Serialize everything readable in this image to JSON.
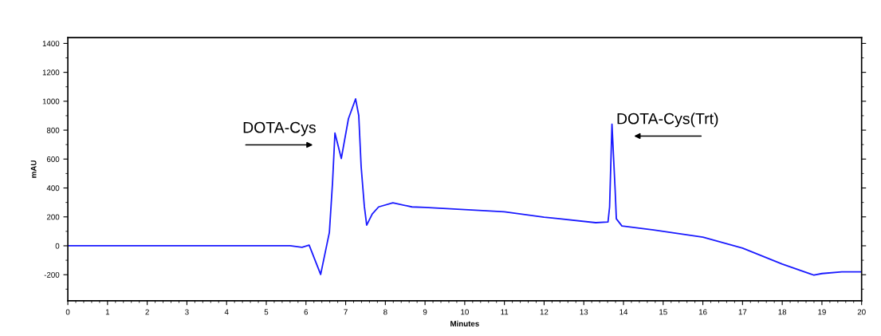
{
  "chart_data": {
    "type": "line",
    "xlabel": "Minutes",
    "ylabel": "mAU",
    "xlim": [
      0,
      20
    ],
    "xticks": [
      0,
      1,
      2,
      3,
      4,
      5,
      6,
      7,
      8,
      9,
      10,
      11,
      12,
      13,
      14,
      15,
      16,
      17,
      18,
      19,
      20
    ],
    "ylim": [
      -380,
      1440
    ],
    "yticks": [
      {
        "value": -200,
        "label": "-200"
      },
      0,
      200,
      400,
      600,
      800,
      1000,
      1200,
      1400
    ],
    "grid": false,
    "marker": "none",
    "line_style": "solid",
    "series": [
      {
        "color": "#1a1aff",
        "x": [
          0,
          5.6,
          5.9,
          6.08,
          6.37,
          6.59,
          6.67,
          6.73,
          6.89,
          7.07,
          7.25,
          7.33,
          7.39,
          7.47,
          7.53,
          7.67,
          7.83,
          8.19,
          8.67,
          9,
          10,
          11,
          12,
          12.3,
          13.3,
          13.61,
          13.65,
          13.71,
          13.79,
          13.82,
          13.96,
          14.76,
          15,
          16,
          17,
          18,
          18.8,
          19,
          19.5,
          20
        ],
        "values": [
          0,
          0,
          -10,
          5,
          -198,
          93,
          440,
          780,
          604,
          879,
          1016,
          901,
          549,
          275,
          143,
          220,
          269,
          297,
          269,
          265,
          250,
          235,
          198,
          190,
          160,
          165,
          269,
          841,
          385,
          187,
          137,
          110,
          100,
          60,
          -16,
          -126,
          -203,
          -192,
          -180,
          -180
        ]
      }
    ],
    "annotations": [
      {
        "text": "DOTA-Cys",
        "x": 6.73,
        "y": 780
      },
      {
        "text": "DOTA-Cys(Trt)",
        "x": 13.71,
        "y": 841
      }
    ]
  }
}
